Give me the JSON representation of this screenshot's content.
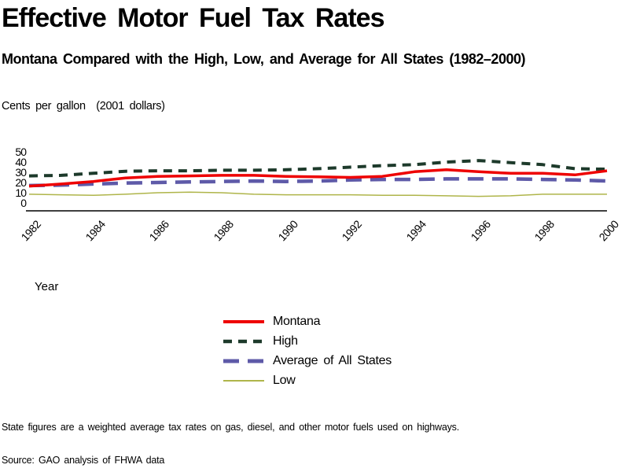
{
  "header": {
    "title": "Effective Motor Fuel Tax Rates",
    "subtitle": "Montana Compared with the High, Low, and Average for All States (1982–2000)"
  },
  "axes": {
    "unit_label": "Cents per gallon  (2001 dollars)",
    "x_axis_label": "Year",
    "y_tick_labels": [
      0,
      10,
      20,
      30,
      40,
      50
    ],
    "x_tick_labels": [
      1982,
      1984,
      1986,
      1988,
      1990,
      1992,
      1994,
      1996,
      1998,
      2000
    ]
  },
  "chart_data": {
    "type": "line",
    "title": "Effective Motor Fuel Tax Rates",
    "subtitle": "Montana Compared with the High, Low, and Average for All States (1982–2000)",
    "xlabel": "Year",
    "ylabel": "Cents per gallon (2001 dollars)",
    "xlim": [
      1982,
      2000
    ],
    "ylim": [
      0,
      50
    ],
    "grid": false,
    "legend_position": "bottom-center",
    "x": [
      1982,
      1983,
      1984,
      1985,
      1986,
      1987,
      1988,
      1989,
      1990,
      1991,
      1992,
      1993,
      1994,
      1995,
      1996,
      1997,
      1998,
      1999,
      2000
    ],
    "series": [
      {
        "name": "Montana",
        "color": "#ee0000",
        "dash": "solid",
        "stroke_width": 3.5,
        "values": [
          16.5,
          18.5,
          21,
          24.5,
          26,
          26.5,
          27,
          27,
          26,
          25.5,
          25,
          26,
          30.5,
          32.5,
          30.5,
          29,
          29,
          27.5,
          31.5
        ]
      },
      {
        "name": "High",
        "color": "#1d3a2b",
        "dash": "11,8",
        "stroke_width": 4,
        "values": [
          26.5,
          27,
          29,
          31,
          31.5,
          31.5,
          32,
          32,
          32.5,
          33.5,
          35,
          36.5,
          37.5,
          40,
          41.5,
          39.5,
          37.5,
          33.5,
          33
        ]
      },
      {
        "name": "Average of All States",
        "color": "#5e5aa8",
        "dash": "20,11",
        "stroke_width": 4.5,
        "values": [
          17,
          17.5,
          18.5,
          19.5,
          20,
          20.5,
          21,
          21.5,
          21,
          21.5,
          22.5,
          23,
          23,
          23.5,
          23.5,
          23.5,
          23,
          22.5,
          21.5
        ]
      },
      {
        "name": "Low",
        "color": "#afb54a",
        "dash": "solid",
        "stroke_width": 1.5,
        "values": [
          8.5,
          8,
          7.5,
          8.5,
          10,
          10.5,
          10,
          8.5,
          8,
          8,
          8,
          7.5,
          7.5,
          7,
          6.5,
          7,
          8.5,
          8.5,
          8.5
        ]
      }
    ]
  },
  "footnotes": {
    "note": "State figures are a weighted average tax rates on gas, diesel, and other motor fuels used on highways.",
    "source": "Source: GAO analysis of FHWA data"
  }
}
